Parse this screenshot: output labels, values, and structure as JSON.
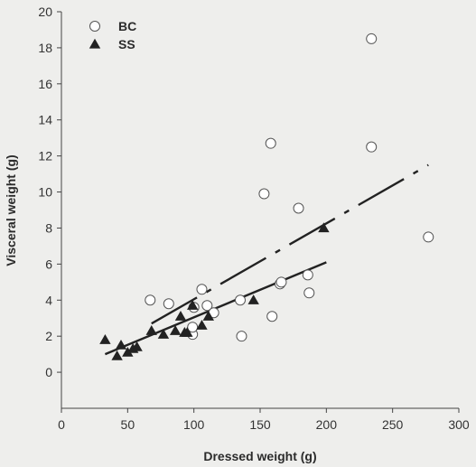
{
  "chart_data": {
    "type": "scatter",
    "xlabel": "Dressed weight (g)",
    "ylabel": "Visceral weight (g)",
    "xlim": [
      0,
      300
    ],
    "ylim": [
      -2,
      20
    ],
    "xticks": [
      0,
      50,
      100,
      150,
      200,
      250,
      300
    ],
    "yticks": [
      0,
      2,
      4,
      6,
      8,
      10,
      12,
      14,
      16,
      18,
      20
    ],
    "legend_position": "top-left",
    "grid": false,
    "series": [
      {
        "name": "BC",
        "marker": "open-circle",
        "color": "#555555",
        "points": [
          [
            67,
            4.0
          ],
          [
            81,
            3.8
          ],
          [
            99,
            2.1
          ],
          [
            99,
            2.5
          ],
          [
            100,
            3.6
          ],
          [
            106,
            4.6
          ],
          [
            110,
            3.7
          ],
          [
            115,
            3.3
          ],
          [
            135,
            4.0
          ],
          [
            136,
            2.0
          ],
          [
            153,
            9.9
          ],
          [
            158,
            12.7
          ],
          [
            159,
            3.1
          ],
          [
            165,
            4.9
          ],
          [
            166,
            5.0
          ],
          [
            179,
            9.1
          ],
          [
            186,
            5.4
          ],
          [
            187,
            4.4
          ],
          [
            234,
            18.5
          ],
          [
            234,
            12.5
          ],
          [
            277,
            7.5
          ]
        ]
      },
      {
        "name": "SS",
        "marker": "filled-triangle",
        "color": "#222222",
        "points": [
          [
            33,
            1.8
          ],
          [
            42,
            0.9
          ],
          [
            45,
            1.5
          ],
          [
            50,
            1.1
          ],
          [
            54,
            1.3
          ],
          [
            57,
            1.4
          ],
          [
            68,
            2.3
          ],
          [
            77,
            2.1
          ],
          [
            86,
            2.3
          ],
          [
            90,
            3.1
          ],
          [
            93,
            2.2
          ],
          [
            95,
            2.2
          ],
          [
            99,
            3.7
          ],
          [
            106,
            2.6
          ],
          [
            111,
            3.1
          ],
          [
            145,
            4.0
          ],
          [
            198,
            8.0
          ]
        ]
      }
    ],
    "fit_lines": [
      {
        "series": "BC",
        "style": "dash-dot",
        "color": "#222222",
        "x": [
          68,
          277
        ],
        "y": [
          2.7,
          11.5
        ]
      },
      {
        "series": "SS",
        "style": "solid",
        "color": "#222222",
        "x": [
          33,
          200
        ],
        "y": [
          1.0,
          6.1
        ]
      }
    ]
  }
}
